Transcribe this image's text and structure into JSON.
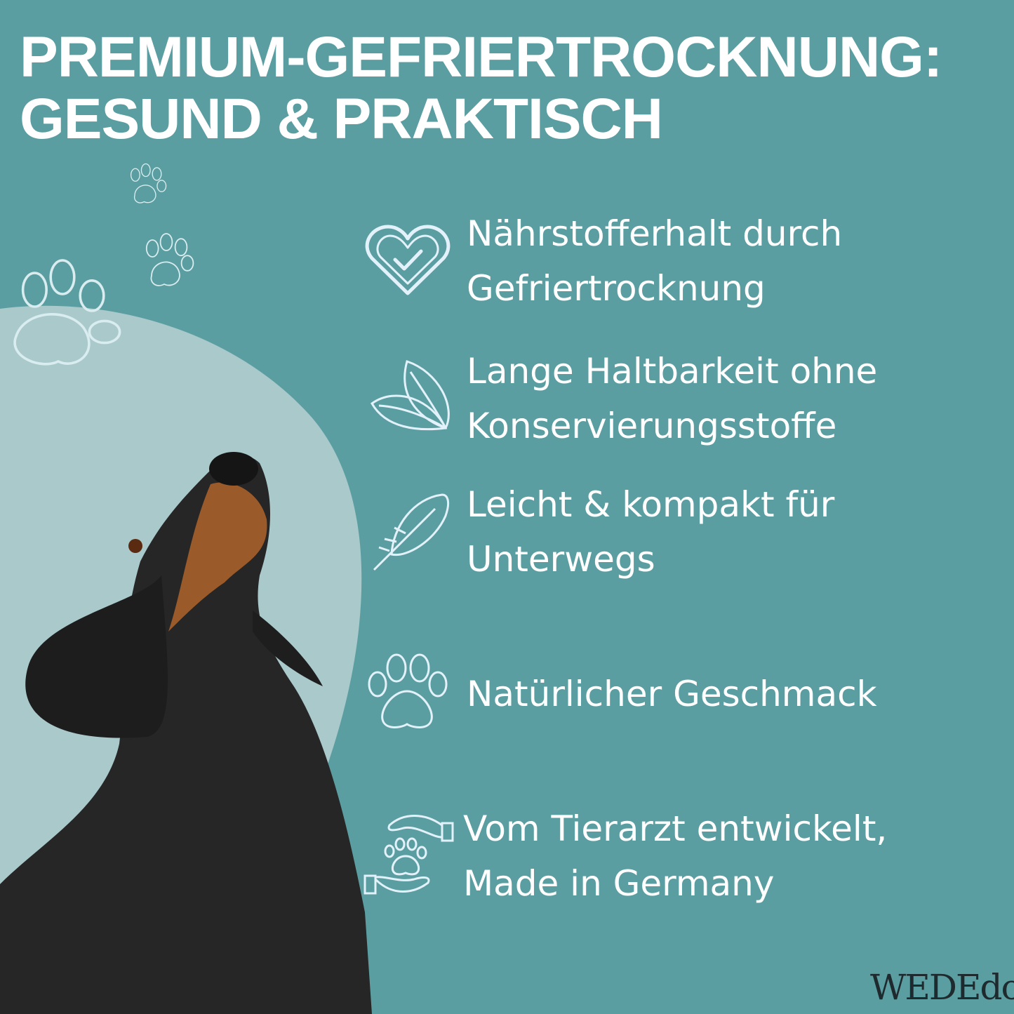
{
  "title": {
    "line1": "PREMIUM-GEFRIERTROCKNUNG:",
    "line2": "GESUND & PRAKTISCH"
  },
  "features": [
    {
      "icon": "heart-check-icon",
      "line1": "Nährstofferhalt durch",
      "line2": "Gefriertrocknung"
    },
    {
      "icon": "leaf-icon",
      "line1": "Lange Haltbarkeit ohne",
      "line2": "Konservierungsstoffe"
    },
    {
      "icon": "feather-icon",
      "line1": "Leicht & kompakt für",
      "line2": "Unterwegs"
    },
    {
      "icon": "paw-icon",
      "line1": "Natürlicher Geschmack",
      "line2": ""
    },
    {
      "icon": "hands-paw-icon",
      "line1": "Vom Tierarzt entwickelt,",
      "line2": "Made in Germany"
    }
  ],
  "logo": {
    "text": "WEDEdog"
  },
  "colors": {
    "background": "#5b9ea1",
    "blob": "#a9c9cb",
    "icon_stroke": "#e3f2fa",
    "text": "#ffffff"
  }
}
